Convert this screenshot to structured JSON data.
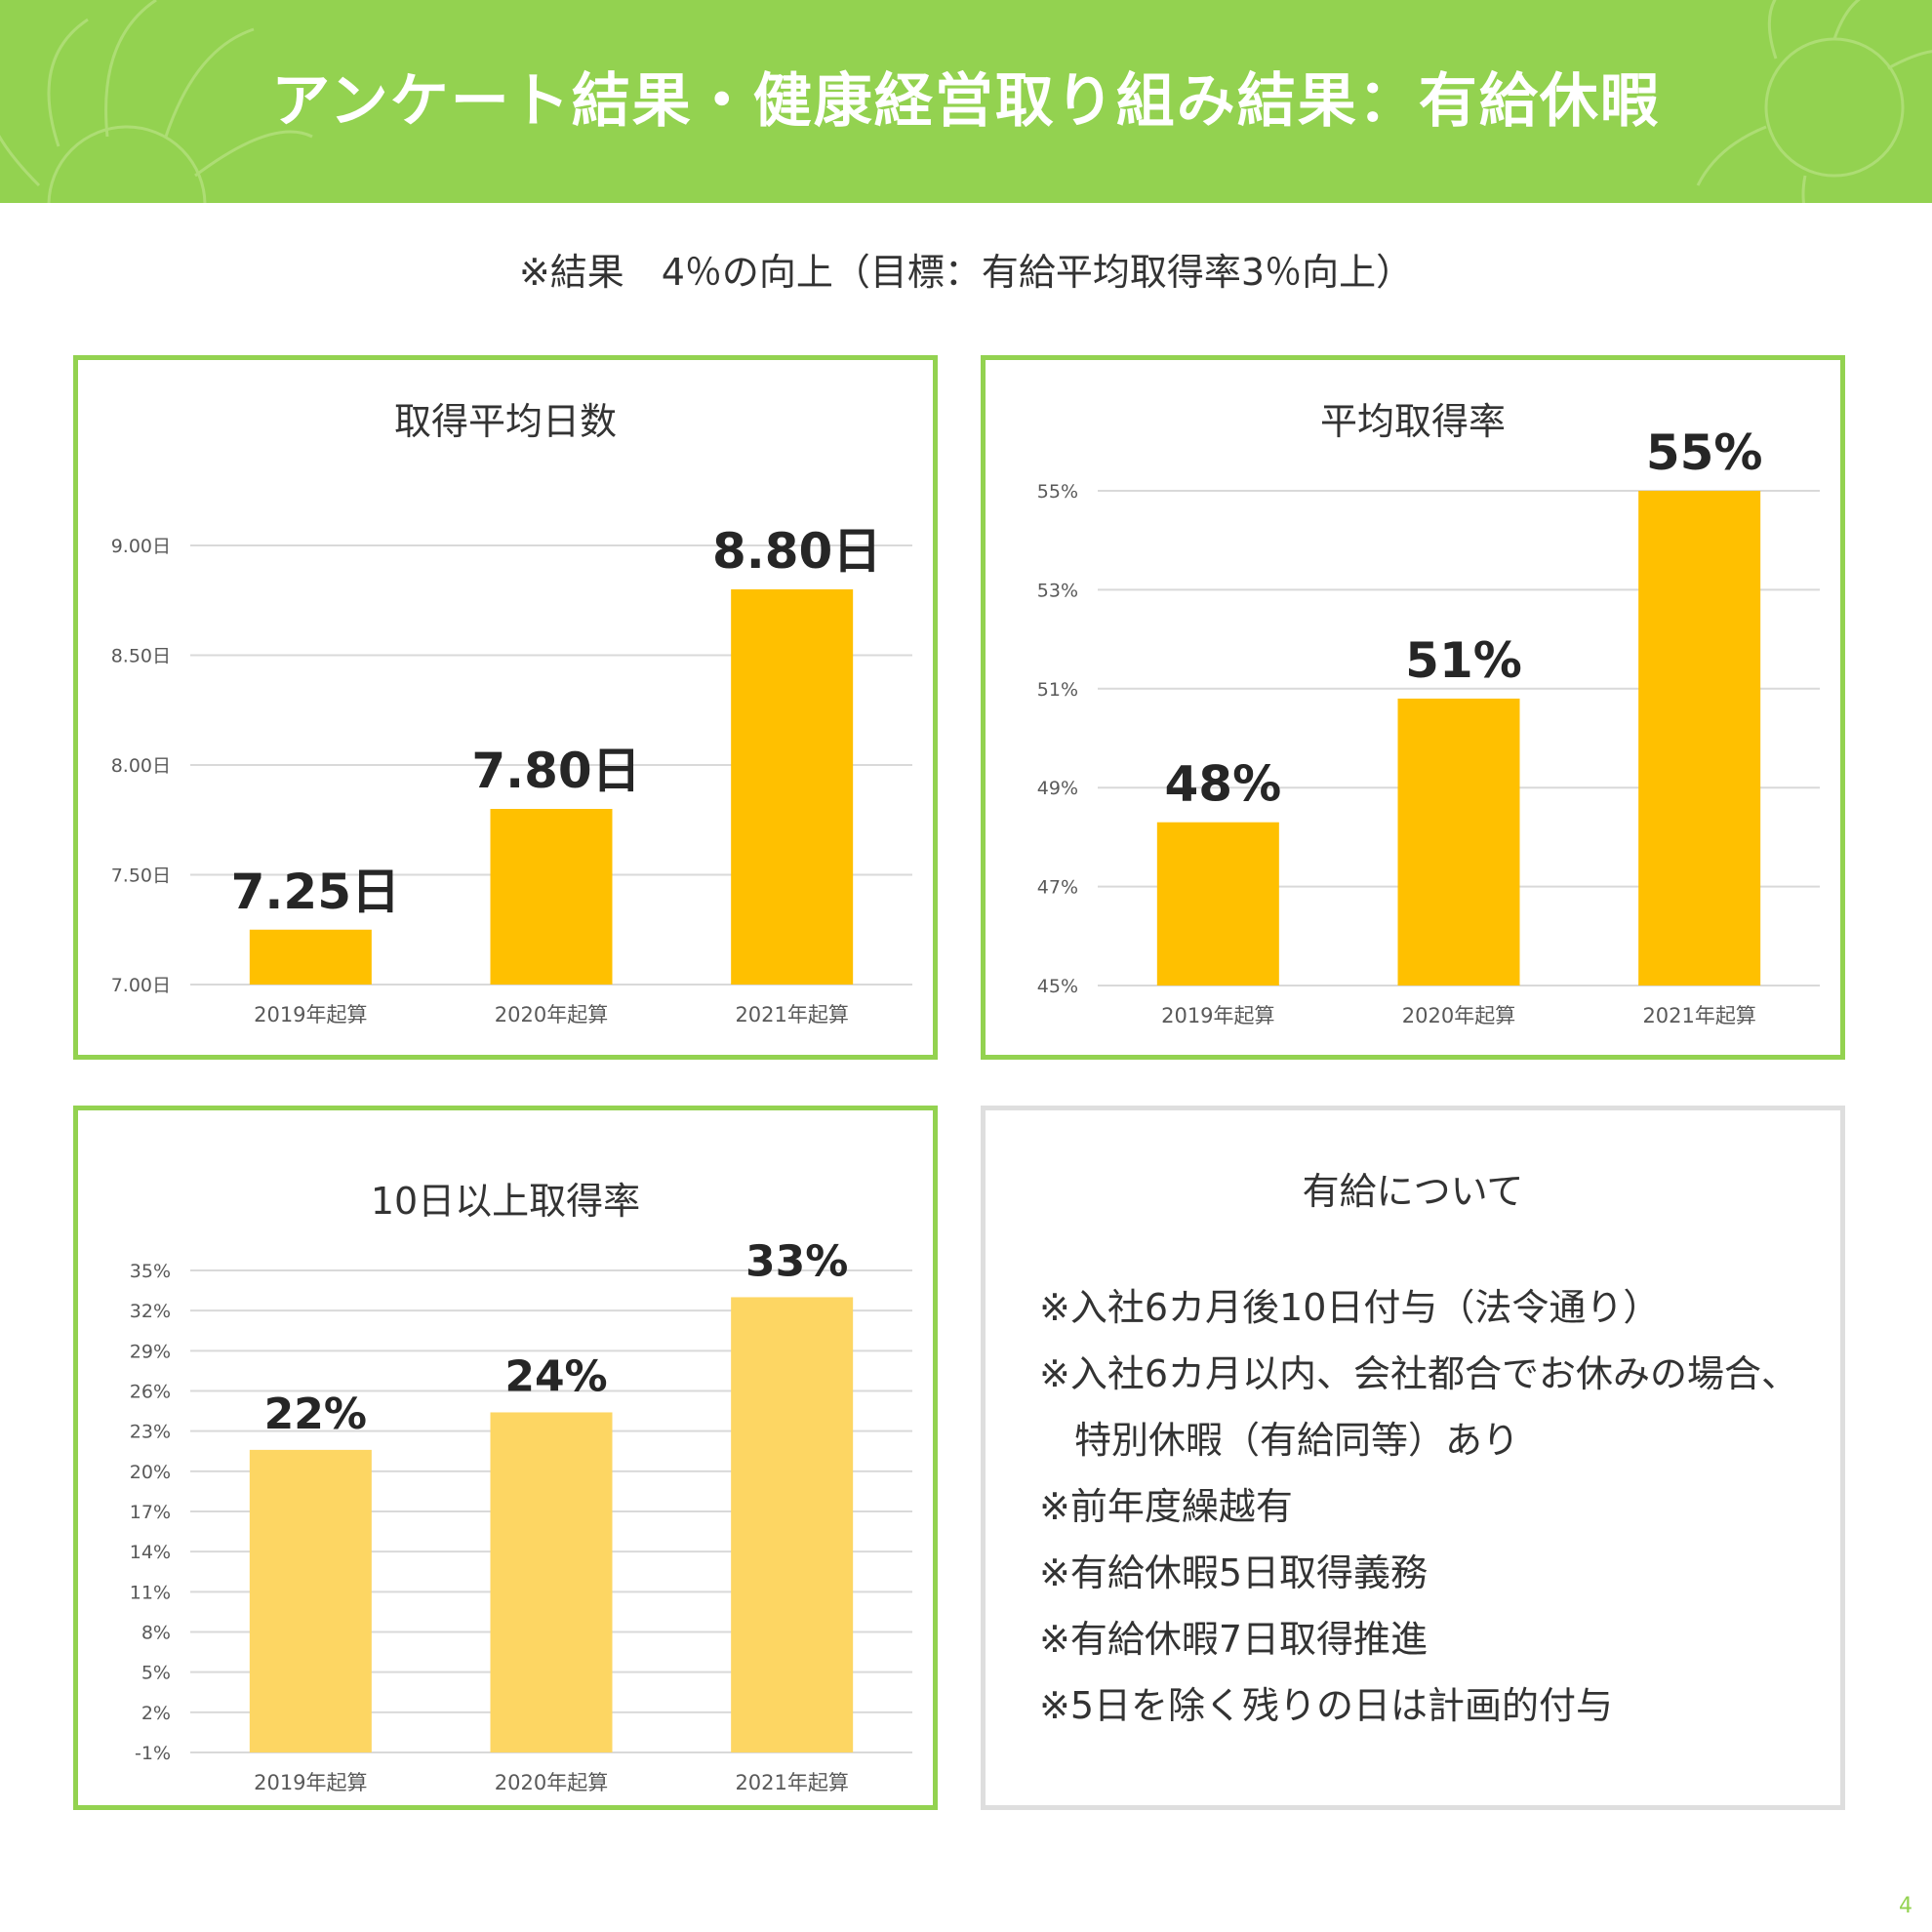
{
  "header": {
    "title": "アンケート結果・健康経営取り組み結果：有給休暇"
  },
  "subtitle": "※結果　4％の向上（目標：有給平均取得率3％向上）",
  "page_number": "4",
  "colors": {
    "header_bg": "#93d250",
    "panel_border": "#93d250",
    "bar_gold": "#ffc000",
    "bar_light": "#fdd663",
    "grid": "#d9d9d9",
    "info_border": "#dedede"
  },
  "chart_data": [
    {
      "type": "bar",
      "title": "取得平均日数",
      "categories": [
        "2019年起算",
        "2020年起算",
        "2021年起算"
      ],
      "values": [
        7.25,
        7.8,
        8.8
      ],
      "value_labels": [
        "7.25日",
        "7.80日",
        "8.80日"
      ],
      "yticks": [
        "7.00日",
        "7.50日",
        "8.00日",
        "8.50日",
        "9.00日"
      ],
      "ylim": [
        7.0,
        9.0
      ],
      "grid": true,
      "bar_color": "#ffc000"
    },
    {
      "type": "bar",
      "title": "平均取得率",
      "categories": [
        "2019年起算",
        "2020年起算",
        "2021年起算"
      ],
      "values": [
        48.3,
        50.8,
        55.0
      ],
      "value_labels": [
        "48%",
        "51%",
        "55%"
      ],
      "yticks": [
        "45%",
        "47%",
        "49%",
        "51%",
        "53%",
        "55%"
      ],
      "ylim": [
        45,
        55
      ],
      "grid": true,
      "bar_color": "#ffc000"
    },
    {
      "type": "bar",
      "title": "10日以上取得率",
      "categories": [
        "2019年起算",
        "2020年起算",
        "2021年起算"
      ],
      "values": [
        21.6,
        24.4,
        33.0
      ],
      "value_labels": [
        "22%",
        "24%",
        "33%"
      ],
      "yticks": [
        "-1%",
        "2%",
        "5%",
        "8%",
        "11%",
        "14%",
        "17%",
        "20%",
        "23%",
        "26%",
        "29%",
        "32%",
        "35%"
      ],
      "ylim": [
        -1,
        35
      ],
      "grid": true,
      "bar_color": "#fdd663"
    }
  ],
  "info": {
    "title": "有給について",
    "lines": [
      "※入社6カ月後10日付与（法令通り）",
      "※入社6カ月以内、会社都合でお休みの場合、",
      "特別休暇（有給同等）あり",
      "※前年度繰越有",
      "※有給休暇5日取得義務",
      "※有給休暇7日取得推進",
      "※5日を除く残りの日は計画的付与"
    ]
  }
}
